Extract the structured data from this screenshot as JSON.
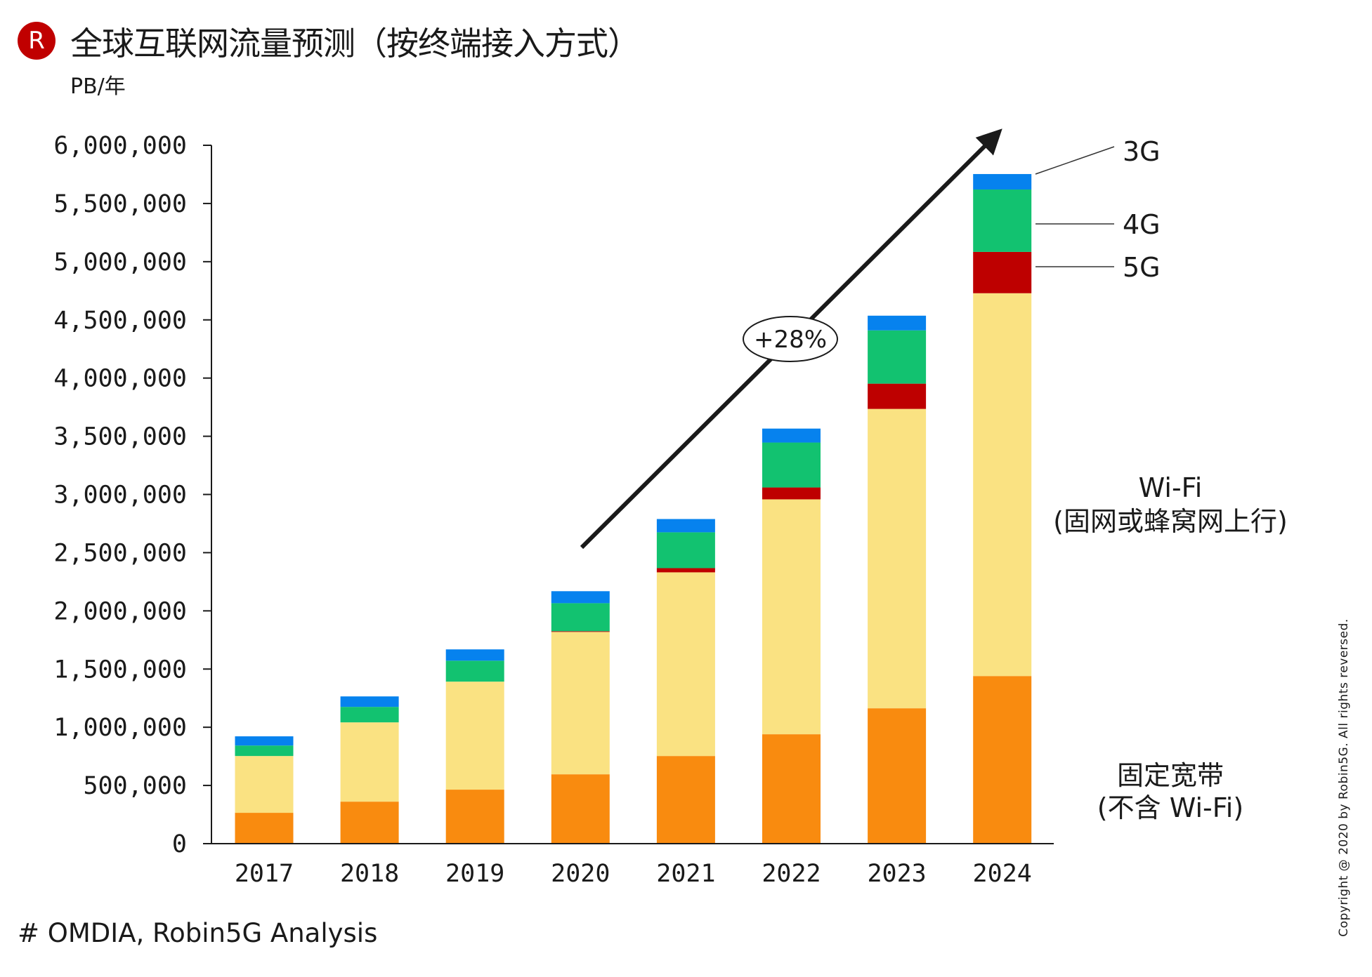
{
  "header": {
    "logo_letter": "R",
    "title": "全球互联网流量预测（按终端接入方式）",
    "unit": "PB/年"
  },
  "footer": {
    "source": "# OMDIA, Robin5G Analysis",
    "copyright": "Copyright @ 2020 by Robin5G. All rights reversed."
  },
  "chart_data": {
    "type": "bar",
    "stacked": true,
    "title": "全球互联网流量预测（按终端接入方式）",
    "ylabel": "PB/年",
    "xlabel": "",
    "categories": [
      "2017",
      "2018",
      "2019",
      "2020",
      "2021",
      "2022",
      "2023",
      "2024"
    ],
    "ylim": [
      0,
      6000000
    ],
    "yticks": [
      0,
      500000,
      1000000,
      1500000,
      2000000,
      2500000,
      3000000,
      3500000,
      4000000,
      4500000,
      5000000,
      5500000,
      6000000
    ],
    "ytick_labels": [
      "0",
      "500,000",
      "1,000,000",
      "1,500,000",
      "2,000,000",
      "2,500,000",
      "3,000,000",
      "3,500,000",
      "4,000,000",
      "4,500,000",
      "5,000,000",
      "5,500,000",
      "6,000,000"
    ],
    "grid": false,
    "series": [
      {
        "name": "固定宽带 (不含 Wi-Fi)",
        "color": "#F98B0F",
        "values": [
          265000,
          361000,
          464000,
          596000,
          753000,
          940000,
          1163000,
          1440000
        ]
      },
      {
        "name": "Wi-Fi (固网或蜂窝网上行)",
        "color": "#FAE282",
        "values": [
          488000,
          681000,
          928000,
          1223000,
          1578000,
          2018000,
          2572000,
          3289000
        ]
      },
      {
        "name": "5G",
        "color": "#BE0000",
        "values": [
          0,
          0,
          0,
          6000,
          36000,
          102000,
          217000,
          355000
        ]
      },
      {
        "name": "4G",
        "color": "#12C270",
        "values": [
          90000,
          133000,
          180000,
          241000,
          308000,
          386000,
          458000,
          536000
        ]
      },
      {
        "name": "3G",
        "color": "#0682EE",
        "values": [
          79000,
          90000,
          97000,
          103000,
          114000,
          120000,
          126000,
          133000
        ]
      }
    ],
    "legend_placement": "right (direct labels beside last bar)",
    "labels": {
      "g3": "3G",
      "g4": "4G",
      "g5": "5G",
      "wifi_line1": "Wi-Fi",
      "wifi_line2": "(固网或蜂窝网上行)",
      "fixed_line1": "固定宽带",
      "fixed_line2": "(不含 Wi-Fi)"
    },
    "annotations": [
      {
        "type": "trend-arrow",
        "text": "+28%",
        "from_category": "2020",
        "to_category": "2024"
      }
    ]
  }
}
